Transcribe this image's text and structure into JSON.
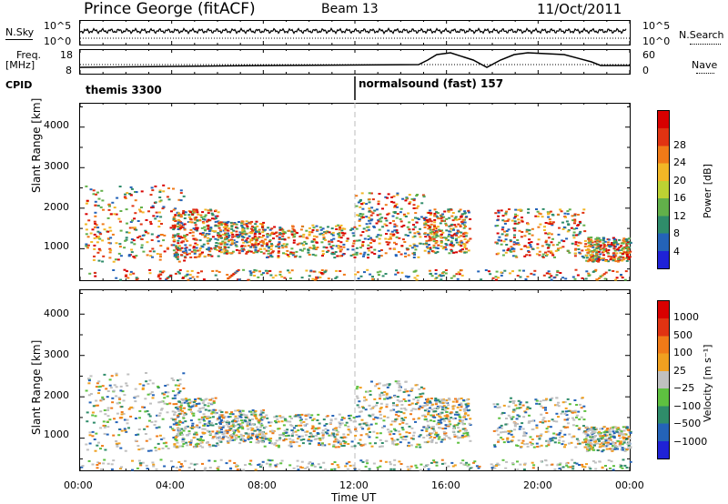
{
  "header": {
    "station": "Prince George (fitACF)",
    "beam": "Beam 13",
    "date": "11/Oct/2011"
  },
  "noise_panel": {
    "left_label": "N.Sky",
    "right_label": "N.Search",
    "left_ticks": [
      "10^5",
      "10^0"
    ],
    "right_ticks": [
      "10^5",
      "10^0"
    ]
  },
  "freq_panel": {
    "left_label_1": "Freq.",
    "left_label_2": "[MHz]",
    "right_label": "Nave",
    "left_ticks": [
      "18",
      "8"
    ],
    "right_ticks": [
      "60",
      "0"
    ]
  },
  "cpid": {
    "label": "CPID",
    "modes": [
      {
        "text": "themis 3300",
        "start": 0
      },
      {
        "text": "normalsound (fast) 157",
        "start": 12.0
      }
    ]
  },
  "chart_data": [
    {
      "type": "heatmap",
      "title": "",
      "quantity": "Power",
      "ylabel": "Slant Range [km]",
      "y_ticks": [
        "1000",
        "2000",
        "3000",
        "4000"
      ],
      "ylim": [
        200,
        4600
      ],
      "xlim": [
        0,
        24
      ],
      "colorbar": {
        "label": "Power [dB]",
        "ticks": [
          "4",
          "8",
          "12",
          "16",
          "20",
          "24",
          "28"
        ],
        "colors": [
          "#1f22d6",
          "#2463b8",
          "#2f8c6a",
          "#62b04a",
          "#bcd233",
          "#f2b726",
          "#f07a18",
          "#e03312",
          "#d80000"
        ]
      }
    },
    {
      "type": "heatmap",
      "title": "",
      "quantity": "Velocity",
      "ylabel": "Slant Range [km]",
      "y_ticks": [
        "1000",
        "2000",
        "3000",
        "4000"
      ],
      "ylim": [
        200,
        4600
      ],
      "xlim": [
        0,
        24
      ],
      "xlabel": "Time UT",
      "x_ticks": [
        "00:00",
        "04:00",
        "08:00",
        "12:00",
        "16:00",
        "20:00",
        "00:00"
      ],
      "colorbar": {
        "label": "Velocity [m s⁻¹]",
        "ticks": [
          "1000",
          "500",
          "100",
          "25",
          "−25",
          "−100",
          "−500",
          "−1000"
        ],
        "colors": [
          "#1f22d6",
          "#2463b8",
          "#2f8c6a",
          "#5ec040",
          "#c0c0c0",
          "#f0a020",
          "#f07a18",
          "#e03312",
          "#d80000"
        ]
      }
    }
  ]
}
